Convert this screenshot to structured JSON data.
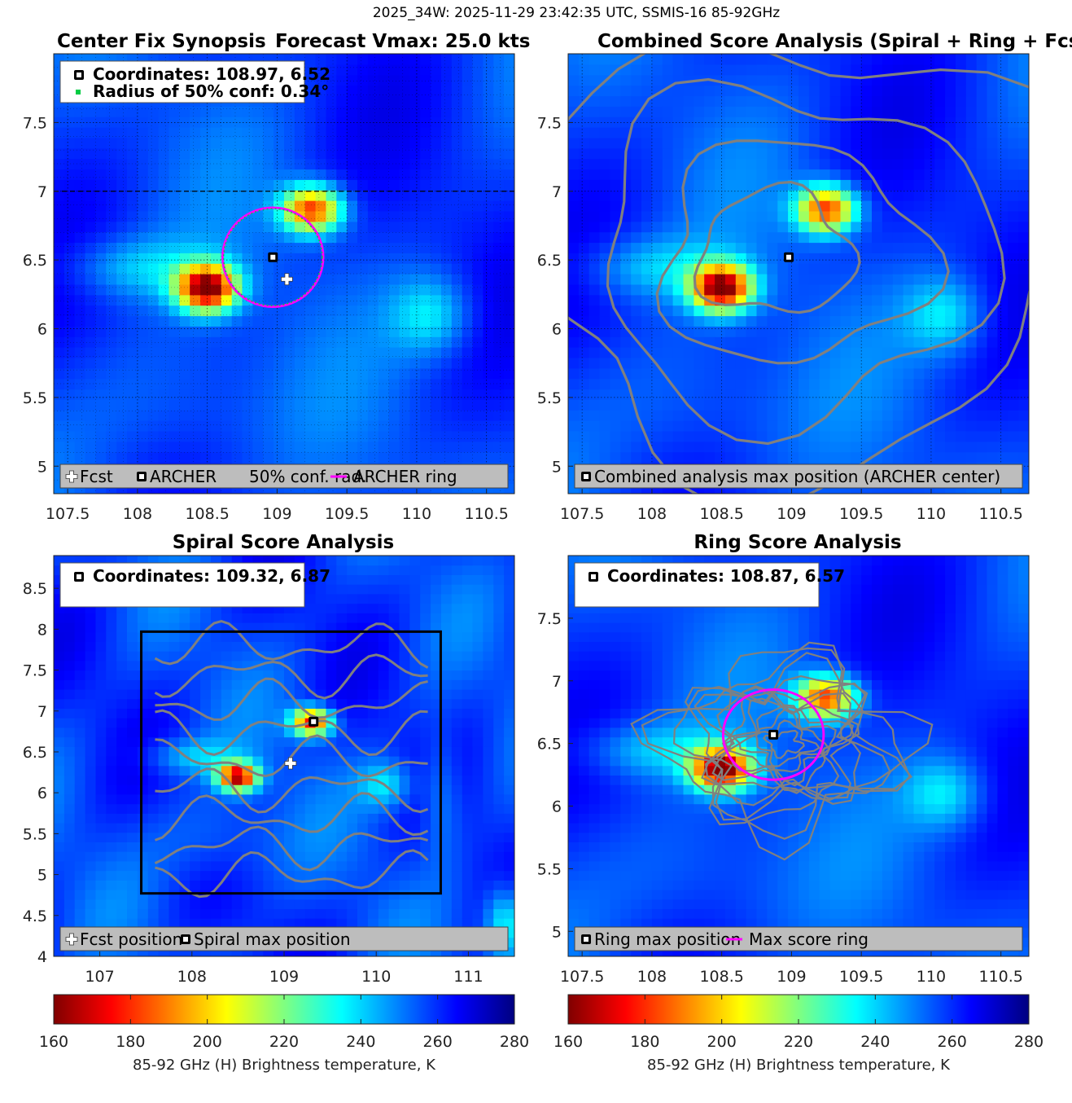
{
  "suptitle": "2025_34W: 2025-11-29 23:42:35 UTC, SSMIS-16 85-92GHz",
  "colors": {
    "magenta": "#ff00ff",
    "contour": "#808080",
    "legend_bg": "#bdbdbd"
  },
  "colorbar": {
    "ticks": [
      "160",
      "180",
      "200",
      "220",
      "240",
      "260",
      "280"
    ],
    "label": "85-92 GHz (H) Brightness temperature, K"
  },
  "chart_data": [
    {
      "id": "synopsis",
      "type": "heatmap",
      "title": "Center Fix Synopsis",
      "title_right": "Forecast Vmax: 25.0 kts",
      "xlim": [
        107.4,
        110.7
      ],
      "ylim": [
        4.8,
        8.0
      ],
      "xticks": [
        "107.5",
        "108",
        "108.5",
        "109",
        "109.5",
        "110",
        "110.5"
      ],
      "yticks": [
        "5",
        "5.5",
        "6",
        "6.5",
        "7",
        "7.5"
      ],
      "info": [
        "Coordinates: 108.97, 6.52",
        "Radius of 50% conf: 0.34°"
      ],
      "legend": [
        "Fcst",
        "ARCHER",
        "50% conf. rad.",
        "ARCHER ring"
      ],
      "archer": [
        108.97,
        6.52
      ],
      "fcst": [
        109.07,
        6.36
      ],
      "ring": {
        "center": [
          108.97,
          6.52
        ],
        "radius": 0.36
      },
      "cold_cores": [
        {
          "x": 108.5,
          "y": 6.3,
          "tb": 160
        },
        {
          "x": 109.25,
          "y": 6.87,
          "tb": 180
        }
      ]
    },
    {
      "id": "combined",
      "type": "heatmap",
      "title": "Combined Score Analysis (Spiral + Ring + Fcst_Pe",
      "xlim": [
        107.4,
        110.7
      ],
      "ylim": [
        4.8,
        8.0
      ],
      "xticks": [
        "107.5",
        "108",
        "108.5",
        "109",
        "109.5",
        "110",
        "110.5"
      ],
      "yticks": [
        "5",
        "5.5",
        "6",
        "6.5",
        "7",
        "7.5"
      ],
      "legend": [
        "Combined analysis max position (ARCHER center)"
      ],
      "archer": [
        108.98,
        6.52
      ],
      "cold_cores": [
        {
          "x": 108.5,
          "y": 6.3,
          "tb": 160
        },
        {
          "x": 109.25,
          "y": 6.87,
          "tb": 180
        }
      ]
    },
    {
      "id": "spiral",
      "type": "heatmap",
      "title": "Spiral Score Analysis",
      "xlim": [
        106.5,
        111.5
      ],
      "ylim": [
        4.0,
        8.9
      ],
      "xticks": [
        "107",
        "108",
        "109",
        "110",
        "111"
      ],
      "yticks": [
        "4",
        "4.5",
        "5",
        "5.5",
        "6",
        "6.5",
        "7",
        "7.5",
        "8",
        "8.5"
      ],
      "info": [
        "Coordinates: 109.32, 6.87"
      ],
      "legend": [
        "Fcst position",
        "Spiral max position"
      ],
      "spiral_max": [
        109.32,
        6.87
      ],
      "fcst": [
        109.07,
        6.36
      ],
      "box": {
        "x": [
          107.45,
          110.7
        ],
        "y": [
          4.77,
          7.97
        ]
      },
      "cold_cores": [
        {
          "x": 108.5,
          "y": 6.2,
          "tb": 165
        },
        {
          "x": 109.3,
          "y": 6.87,
          "tb": 175
        }
      ]
    },
    {
      "id": "ring",
      "type": "heatmap",
      "title": "Ring Score Analysis",
      "xlim": [
        107.4,
        110.7
      ],
      "ylim": [
        4.8,
        8.0
      ],
      "xticks": [
        "107.5",
        "108",
        "108.5",
        "109",
        "109.5",
        "110",
        "110.5"
      ],
      "yticks": [
        "5",
        "5.5",
        "6",
        "6.5",
        "7",
        "7.5"
      ],
      "info": [
        "Coordinates: 108.87, 6.57"
      ],
      "legend": [
        "Ring max position",
        "Max score ring"
      ],
      "ring_max": [
        108.87,
        6.57
      ],
      "ring": {
        "center": [
          108.87,
          6.57
        ],
        "radius": 0.36
      },
      "cold_cores": [
        {
          "x": 108.5,
          "y": 6.3,
          "tb": 160
        },
        {
          "x": 109.25,
          "y": 6.87,
          "tb": 180
        }
      ]
    }
  ]
}
